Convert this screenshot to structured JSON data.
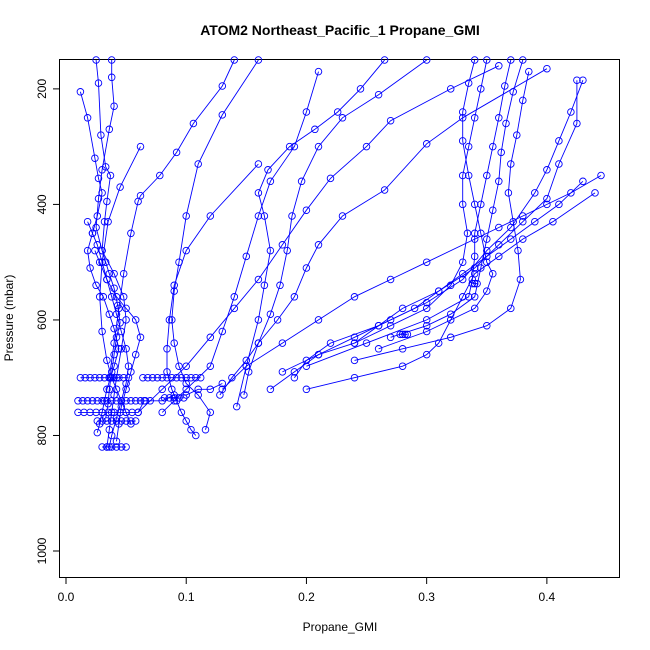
{
  "chart_data": {
    "type": "line",
    "title": "ATOM2 Northeast_Pacific_1 Propane_GMI",
    "xlabel": "Propane_GMI",
    "ylabel": "Pressure (mbar)",
    "xlim": [
      -0.005,
      0.46
    ],
    "ylim": [
      1045,
      150
    ],
    "y_reversed": true,
    "x_ticks": [
      "0.0",
      "0.1",
      "0.2",
      "0.3",
      "0.4"
    ],
    "x_tick_values": [
      0,
      0.1,
      0.2,
      0.3,
      0.4
    ],
    "y_ticks": [
      "200",
      "400",
      "600",
      "800",
      "1000"
    ],
    "y_tick_values": [
      200,
      400,
      600,
      800,
      1000
    ],
    "grid": false,
    "legend": "none",
    "marker": "open-circle",
    "color": "#0000ff",
    "series": [
      {
        "x": [
          0.012,
          0.018,
          0.024,
          0.027,
          0.03,
          0.026,
          0.022,
          0.018,
          0.02,
          0.025,
          0.031,
          0.036,
          0.04,
          0.044,
          0.04,
          0.037,
          0.034,
          0.032,
          0.03,
          0.028,
          0.026
        ],
        "y": [
          205,
          250,
          320,
          355,
          380,
          420,
          450,
          480,
          510,
          540,
          560,
          590,
          615,
          650,
          680,
          700,
          720,
          740,
          760,
          780,
          795
        ]
      },
      {
        "x": [
          0.025,
          0.027,
          0.029,
          0.033,
          0.037,
          0.034,
          0.032,
          0.03,
          0.033,
          0.036,
          0.04,
          0.043,
          0.045,
          0.042,
          0.04,
          0.038,
          0.036,
          0.035,
          0.033
        ],
        "y": [
          150,
          190,
          280,
          335,
          350,
          395,
          430,
          480,
          500,
          520,
          545,
          575,
          605,
          630,
          660,
          690,
          720,
          745,
          770
        ]
      },
      {
        "x": [
          0.038,
          0.038,
          0.04,
          0.036,
          0.03,
          0.027,
          0.025,
          0.03,
          0.04,
          0.048,
          0.05,
          0.046,
          0.042,
          0.04,
          0.038,
          0.036,
          0.034
        ],
        "y": [
          150,
          180,
          230,
          270,
          340,
          390,
          440,
          480,
          520,
          560,
          600,
          650,
          700,
          730,
          760,
          790,
          820
        ]
      },
      {
        "x": [
          0.018,
          0.022,
          0.026,
          0.03,
          0.034,
          0.038,
          0.042,
          0.046,
          0.05,
          0.052,
          0.05,
          0.046,
          0.042,
          0.038,
          0.036
        ],
        "y": [
          430,
          450,
          470,
          500,
          530,
          560,
          590,
          620,
          650,
          680,
          710,
          740,
          770,
          800,
          820
        ]
      },
      {
        "x": [
          0.024,
          0.028,
          0.034,
          0.042,
          0.05,
          0.058,
          0.062,
          0.058,
          0.054,
          0.05,
          0.046,
          0.044,
          0.042
        ],
        "y": [
          480,
          500,
          530,
          560,
          580,
          600,
          630,
          660,
          690,
          720,
          750,
          780,
          810
        ]
      },
      {
        "x": [
          0.062,
          0.045,
          0.035,
          0.03,
          0.028,
          0.03,
          0.034,
          0.038,
          0.042,
          0.046,
          0.05,
          0.054
        ],
        "y": [
          300,
          370,
          430,
          500,
          560,
          620,
          670,
          700,
          720,
          740,
          760,
          780
        ]
      },
      {
        "x": [
          0.14,
          0.13,
          0.106,
          0.092,
          0.078,
          0.062,
          0.06,
          0.054,
          0.048,
          0.044,
          0.04,
          0.036
        ],
        "y": [
          150,
          195,
          260,
          310,
          350,
          385,
          395,
          450,
          520,
          580,
          640,
          700
        ]
      },
      {
        "x": [
          0.16,
          0.13,
          0.11,
          0.1,
          0.094,
          0.09,
          0.088,
          0.09,
          0.094,
          0.1,
          0.11,
          0.12,
          0.116
        ],
        "y": [
          150,
          245,
          330,
          420,
          500,
          550,
          600,
          640,
          680,
          710,
          730,
          760,
          790
        ]
      },
      {
        "x": [
          0.16,
          0.12,
          0.1,
          0.09,
          0.086,
          0.084,
          0.084,
          0.088,
          0.092,
          0.096,
          0.1,
          0.104,
          0.108
        ],
        "y": [
          330,
          420,
          480,
          540,
          600,
          650,
          690,
          720,
          740,
          760,
          775,
          790,
          800
        ]
      },
      {
        "x": [
          0.21,
          0.2,
          0.19,
          0.17,
          0.16,
          0.15,
          0.14,
          0.13,
          0.12,
          0.1,
          0.09,
          0.08
        ],
        "y": [
          170,
          240,
          300,
          360,
          420,
          490,
          560,
          620,
          680,
          720,
          740,
          760
        ]
      },
      {
        "x": [
          0.265,
          0.245,
          0.226,
          0.207,
          0.186,
          0.168,
          0.16,
          0.165,
          0.17,
          0.165,
          0.16,
          0.15,
          0.142
        ],
        "y": [
          150,
          200,
          240,
          270,
          300,
          340,
          380,
          420,
          480,
          540,
          600,
          680,
          750
        ]
      },
      {
        "x": [
          0.3,
          0.26,
          0.23,
          0.21,
          0.196,
          0.188,
          0.184,
          0.178,
          0.17,
          0.16,
          0.152,
          0.148
        ],
        "y": [
          150,
          210,
          250,
          300,
          360,
          420,
          480,
          540,
          590,
          640,
          690,
          730
        ]
      },
      {
        "x": [
          0.36,
          0.32,
          0.27,
          0.25,
          0.22,
          0.2,
          0.18,
          0.16,
          0.14,
          0.12,
          0.1,
          0.08,
          0.06
        ],
        "y": [
          160,
          200,
          255,
          300,
          355,
          410,
          470,
          530,
          580,
          630,
          680,
          720,
          760
        ]
      },
      {
        "x": [
          0.4,
          0.33,
          0.3,
          0.265,
          0.23,
          0.21,
          0.2,
          0.19,
          0.176,
          0.16,
          0.15,
          0.138,
          0.128
        ],
        "y": [
          165,
          250,
          295,
          375,
          420,
          470,
          510,
          560,
          600,
          640,
          670,
          700,
          730
        ]
      },
      {
        "x": [
          0.445,
          0.42,
          0.4,
          0.38,
          0.36,
          0.34,
          0.3,
          0.27,
          0.24,
          0.21,
          0.18,
          0.15,
          0.13
        ],
        "y": [
          350,
          380,
          400,
          420,
          440,
          460,
          500,
          530,
          560,
          600,
          640,
          680,
          720
        ]
      },
      {
        "x": [
          0.43,
          0.41,
          0.39,
          0.37,
          0.35,
          0.33,
          0.31,
          0.29,
          0.26,
          0.24,
          0.21,
          0.19,
          0.17
        ],
        "y": [
          360,
          400,
          430,
          460,
          490,
          520,
          550,
          580,
          610,
          640,
          660,
          690,
          720
        ]
      },
      {
        "x": [
          0.43,
          0.42,
          0.41,
          0.4,
          0.39,
          0.37,
          0.35,
          0.33,
          0.3,
          0.27,
          0.24,
          0.21,
          0.18
        ],
        "y": [
          185,
          240,
          290,
          340,
          380,
          440,
          480,
          530,
          570,
          600,
          630,
          660,
          690
        ]
      },
      {
        "x": [
          0.425,
          0.425,
          0.41,
          0.4,
          0.38,
          0.36,
          0.34,
          0.31,
          0.28,
          0.26,
          0.22,
          0.2,
          0.19
        ],
        "y": [
          185,
          260,
          330,
          390,
          430,
          470,
          510,
          550,
          580,
          610,
          640,
          670,
          700
        ]
      },
      {
        "x": [
          0.37,
          0.365,
          0.36,
          0.355,
          0.35,
          0.345,
          0.34,
          0.34,
          0.338,
          0.335,
          0.3,
          0.25,
          0.2
        ],
        "y": [
          150,
          195,
          250,
          300,
          350,
          400,
          450,
          490,
          530,
          560,
          600,
          640,
          680
        ]
      },
      {
        "x": [
          0.34,
          0.335,
          0.33,
          0.33,
          0.335,
          0.34,
          0.345,
          0.35,
          0.355,
          0.35,
          0.34,
          0.3,
          0.26
        ],
        "y": [
          150,
          190,
          240,
          290,
          350,
          400,
          450,
          500,
          520,
          550,
          580,
          620,
          650
        ]
      },
      {
        "x": [
          0.385,
          0.38,
          0.375,
          0.37,
          0.368,
          0.372,
          0.376,
          0.378,
          0.37,
          0.35,
          0.32,
          0.28,
          0.24
        ],
        "y": [
          170,
          220,
          280,
          330,
          380,
          430,
          480,
          530,
          580,
          610,
          630,
          650,
          670
        ]
      },
      {
        "x": [
          0.38,
          0.372,
          0.366,
          0.362,
          0.36,
          0.355,
          0.35,
          0.345,
          0.34,
          0.32,
          0.3,
          0.27
        ],
        "y": [
          150,
          205,
          260,
          310,
          360,
          410,
          460,
          510,
          560,
          590,
          610,
          630
        ]
      },
      {
        "x": [
          0.35,
          0.345,
          0.34,
          0.335,
          0.33,
          0.33,
          0.334,
          0.33,
          0.32,
          0.3,
          0.27,
          0.24
        ],
        "y": [
          150,
          200,
          250,
          300,
          350,
          400,
          450,
          500,
          540,
          580,
          610,
          640
        ]
      },
      {
        "x": [
          0.44,
          0.405,
          0.38,
          0.36,
          0.34,
          0.33,
          0.32,
          0.31,
          0.3,
          0.28,
          0.24,
          0.2
        ],
        "y": [
          380,
          430,
          460,
          490,
          520,
          560,
          600,
          640,
          660,
          680,
          700,
          720
        ]
      },
      {
        "x": [
          0.01,
          0.015,
          0.02,
          0.025,
          0.03,
          0.035,
          0.04,
          0.045,
          0.05,
          0.055,
          0.06,
          0.065,
          0.07,
          0.08,
          0.09,
          0.1,
          0.11,
          0.12,
          0.13
        ],
        "y": [
          760,
          760,
          760,
          760,
          760,
          760,
          760,
          760,
          760,
          760,
          760,
          740,
          740,
          740,
          730,
          730,
          720,
          720,
          710
        ]
      },
      {
        "x": [
          0.01,
          0.014,
          0.018,
          0.022,
          0.026,
          0.03,
          0.034,
          0.038,
          0.042,
          0.046,
          0.05,
          0.054,
          0.058,
          0.062,
          0.066
        ],
        "y": [
          740,
          740,
          740,
          740,
          740,
          740,
          740,
          740,
          740,
          740,
          740,
          740,
          740,
          740,
          740
        ]
      },
      {
        "x": [
          0.012,
          0.016,
          0.02,
          0.024,
          0.028,
          0.032,
          0.036,
          0.04,
          0.044,
          0.048,
          0.052
        ],
        "y": [
          700,
          700,
          700,
          700,
          700,
          700,
          700,
          700,
          700,
          700,
          700
        ]
      },
      {
        "x": [
          0.064,
          0.068,
          0.072,
          0.076,
          0.08,
          0.084,
          0.088,
          0.092,
          0.096,
          0.1,
          0.104,
          0.108,
          0.112
        ],
        "y": [
          700,
          700,
          700,
          700,
          700,
          700,
          700,
          700,
          700,
          700,
          700,
          700,
          700
        ]
      },
      {
        "x": [
          0.026,
          0.03,
          0.034,
          0.038,
          0.042,
          0.046,
          0.05,
          0.054,
          0.058
        ],
        "y": [
          775,
          775,
          775,
          775,
          775,
          775,
          775,
          775,
          775
        ]
      },
      {
        "x": [
          0.03,
          0.034,
          0.038,
          0.042,
          0.046,
          0.05
        ],
        "y": [
          820,
          820,
          820,
          820,
          820,
          820
        ]
      },
      {
        "x": [
          0.278,
          0.28,
          0.282,
          0.284
        ],
        "y": [
          625,
          625,
          625,
          625
        ]
      },
      {
        "x": [
          0.338,
          0.34,
          0.342
        ],
        "y": [
          537,
          537,
          537
        ]
      },
      {
        "x": [
          0.082,
          0.086,
          0.09,
          0.094,
          0.098
        ],
        "y": [
          735,
          735,
          735,
          735,
          735
        ]
      }
    ]
  }
}
